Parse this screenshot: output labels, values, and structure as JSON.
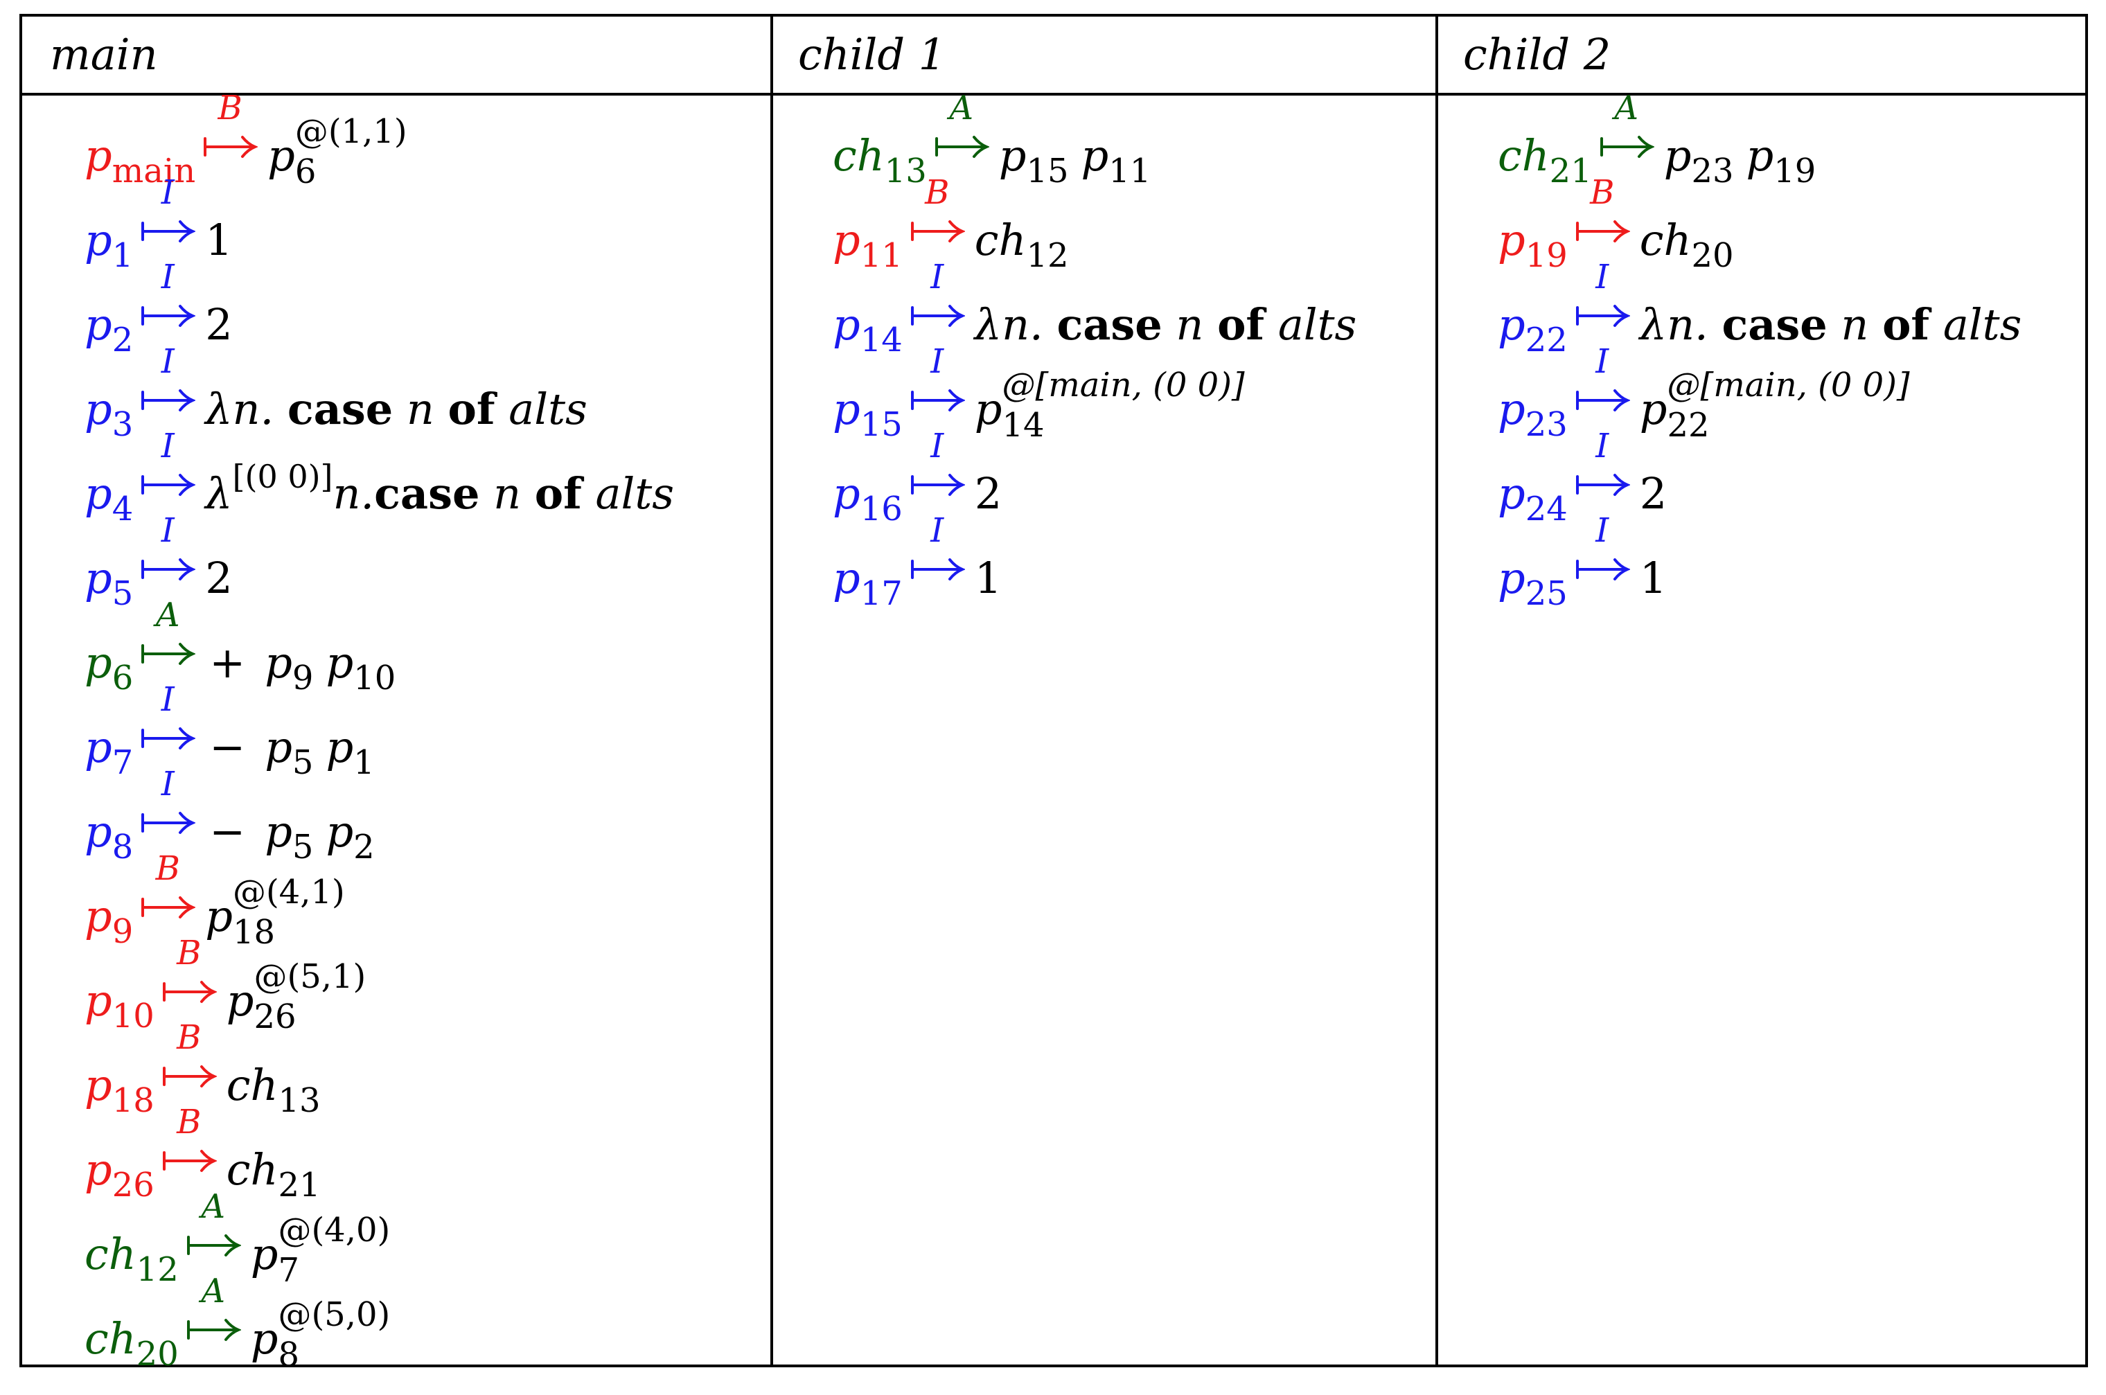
{
  "headers": [
    "main",
    "child 1",
    "child 2"
  ],
  "colors": {
    "B": "#ee1c1c",
    "I": "#1a1aee",
    "A": "#0b5e0b"
  },
  "main": [
    {
      "lhs": "p",
      "lhs_sub": "main",
      "kind": "B",
      "rhs": "p",
      "rhs_sub": "6",
      "rhs_sup": "@(1,1)"
    },
    {
      "lhs": "p",
      "lhs_sub": "1",
      "kind": "I",
      "rhs_plain": "1"
    },
    {
      "lhs": "p",
      "lhs_sub": "2",
      "kind": "I",
      "rhs_plain": "2"
    },
    {
      "lhs": "p",
      "lhs_sub": "3",
      "kind": "I",
      "rhs_lambda": "λn. ",
      "rhs_case": "case",
      "rhs_mid": " n ",
      "rhs_of": "of",
      "rhs_alts": " alts"
    },
    {
      "lhs": "p",
      "lhs_sub": "4",
      "kind": "I",
      "rhs_lambda": "λ",
      "rhs_lsup": "[(0 0)]",
      "rhs_lambda2": "n.",
      "rhs_case": "case",
      "rhs_mid": " n ",
      "rhs_of": "of",
      "rhs_alts": " alts"
    },
    {
      "lhs": "p",
      "lhs_sub": "5",
      "kind": "I",
      "rhs_plain": "2"
    },
    {
      "lhs": "p",
      "lhs_sub": "6",
      "kind": "A",
      "rhs_op": "+",
      "rhs_args": [
        [
          "p",
          "9"
        ],
        [
          "p",
          "10"
        ]
      ]
    },
    {
      "lhs": "p",
      "lhs_sub": "7",
      "kind": "I",
      "rhs_op": "−",
      "rhs_args": [
        [
          "p",
          "5"
        ],
        [
          "p",
          "1"
        ]
      ]
    },
    {
      "lhs": "p",
      "lhs_sub": "8",
      "kind": "I",
      "rhs_op": "−",
      "rhs_args": [
        [
          "p",
          "5"
        ],
        [
          "p",
          "2"
        ]
      ]
    },
    {
      "lhs": "p",
      "lhs_sub": "9",
      "kind": "B",
      "rhs": "p",
      "rhs_sub": "18",
      "rhs_sup": "@(4,1)"
    },
    {
      "lhs": "p",
      "lhs_sub": "10",
      "kind": "B",
      "rhs": "p",
      "rhs_sub": "26",
      "rhs_sup": "@(5,1)"
    },
    {
      "lhs": "p",
      "lhs_sub": "18",
      "kind": "B",
      "rhs": "ch",
      "rhs_sub": "13"
    },
    {
      "lhs": "p",
      "lhs_sub": "26",
      "kind": "B",
      "rhs": "ch",
      "rhs_sub": "21"
    },
    {
      "lhs": "ch",
      "lhs_sub": "12",
      "kind": "A",
      "rhs": "p",
      "rhs_sub": "7",
      "rhs_sup": "@(4,0)"
    },
    {
      "lhs": "ch",
      "lhs_sub": "20",
      "kind": "A",
      "rhs": "p",
      "rhs_sub": "8",
      "rhs_sup": "@(5,0)"
    }
  ],
  "child1": [
    {
      "lhs": "ch",
      "lhs_sub": "13",
      "kind": "A",
      "rhs_args": [
        [
          "p",
          "15"
        ],
        [
          "p",
          "11"
        ]
      ]
    },
    {
      "lhs": "p",
      "lhs_sub": "11",
      "kind": "B",
      "rhs": "ch",
      "rhs_sub": "12"
    },
    {
      "lhs": "p",
      "lhs_sub": "14",
      "kind": "I",
      "rhs_lambda": "λn. ",
      "rhs_case": "case",
      "rhs_mid": " n ",
      "rhs_of": "of",
      "rhs_alts": " alts"
    },
    {
      "lhs": "p",
      "lhs_sub": "15",
      "kind": "I",
      "rhs": "p",
      "rhs_sub": "14",
      "rhs_sup": "@[main, (0 0)]",
      "sup_italic": true
    },
    {
      "lhs": "p",
      "lhs_sub": "16",
      "kind": "I",
      "rhs_plain": "2"
    },
    {
      "lhs": "p",
      "lhs_sub": "17",
      "kind": "I",
      "rhs_plain": "1"
    }
  ],
  "child2": [
    {
      "lhs": "ch",
      "lhs_sub": "21",
      "kind": "A",
      "rhs_args": [
        [
          "p",
          "23"
        ],
        [
          "p",
          "19"
        ]
      ]
    },
    {
      "lhs": "p",
      "lhs_sub": "19",
      "kind": "B",
      "rhs": "ch",
      "rhs_sub": "20"
    },
    {
      "lhs": "p",
      "lhs_sub": "22",
      "kind": "I",
      "rhs_lambda": "λn. ",
      "rhs_case": "case",
      "rhs_mid": " n ",
      "rhs_of": "of",
      "rhs_alts": " alts"
    },
    {
      "lhs": "p",
      "lhs_sub": "23",
      "kind": "I",
      "rhs": "p",
      "rhs_sub": "22",
      "rhs_sup": "@[main, (0 0)]",
      "sup_italic": true
    },
    {
      "lhs": "p",
      "lhs_sub": "24",
      "kind": "I",
      "rhs_plain": "2"
    },
    {
      "lhs": "p",
      "lhs_sub": "25",
      "kind": "I",
      "rhs_plain": "1"
    }
  ]
}
